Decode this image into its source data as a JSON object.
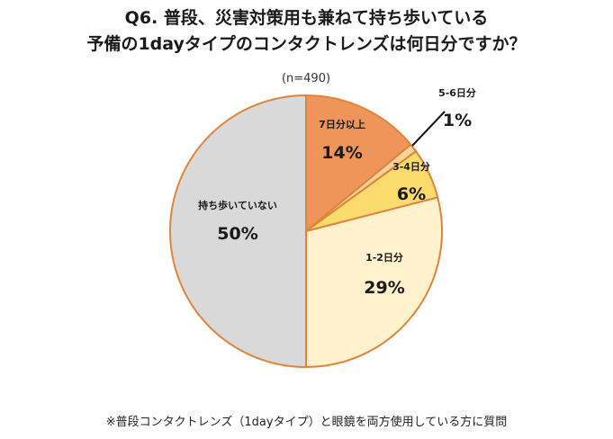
{
  "title": {
    "line1": "Q6. 普段、災害対策用も兼ねて持ち歩いている",
    "line2": "予備の1dayタイプのコンタクトレンズは何日分ですか？"
  },
  "n_label": "(n=490)",
  "footnote": "※普段コンタクトレンズ（1dayタイプ）と眼鏡を両方使用している方に質問",
  "chart_data": {
    "type": "pie",
    "title": "Q6. 普段、災害対策用も兼ねて持ち歩いている 予備の1dayタイプのコンタクトレンズは何日分ですか？",
    "n": 490,
    "start": "12 o'clock, clockwise",
    "slices": [
      {
        "label": "7日分以上",
        "value": 14,
        "value_label": "14%",
        "color": "#F0955A"
      },
      {
        "label": "5-6日分",
        "value": 1,
        "value_label": "1%",
        "color": "#F8D39A"
      },
      {
        "label": "3-4日分",
        "value": 6,
        "value_label": "6%",
        "color": "#FBDA6E"
      },
      {
        "label": "1-2日分",
        "value": 29,
        "value_label": "29%",
        "color": "#FFF2CC"
      },
      {
        "label": "持ち歩いていない",
        "value": 50,
        "value_label": "50%",
        "color": "#D9D9D9"
      }
    ],
    "border_color": "#E0843A"
  }
}
